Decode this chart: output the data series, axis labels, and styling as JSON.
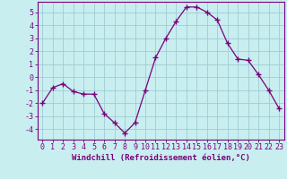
{
  "x": [
    0,
    1,
    2,
    3,
    4,
    5,
    6,
    7,
    8,
    9,
    10,
    11,
    12,
    13,
    14,
    15,
    16,
    17,
    18,
    19,
    20,
    21,
    22,
    23
  ],
  "y": [
    -2.0,
    -0.8,
    -0.5,
    -1.1,
    -1.3,
    -1.3,
    -2.8,
    -3.5,
    -4.3,
    -3.5,
    -1.0,
    1.5,
    3.0,
    4.3,
    5.4,
    5.4,
    5.0,
    4.4,
    2.6,
    1.4,
    1.3,
    0.2,
    -1.0,
    -2.4
  ],
  "line_color": "#7b007b",
  "marker": "+",
  "marker_size": 4,
  "bg_color": "#c8eef0",
  "grid_color": "#a0ccd4",
  "axis_color": "#7b007b",
  "xlabel": "Windchill (Refroidissement éolien,°C)",
  "ylim": [
    -4.8,
    5.8
  ],
  "xlim": [
    -0.5,
    23.5
  ],
  "yticks": [
    -4,
    -3,
    -2,
    -1,
    0,
    1,
    2,
    3,
    4,
    5
  ],
  "xticks": [
    0,
    1,
    2,
    3,
    4,
    5,
    6,
    7,
    8,
    9,
    10,
    11,
    12,
    13,
    14,
    15,
    16,
    17,
    18,
    19,
    20,
    21,
    22,
    23
  ],
  "label_fontsize": 6.5,
  "tick_fontsize": 6.0
}
